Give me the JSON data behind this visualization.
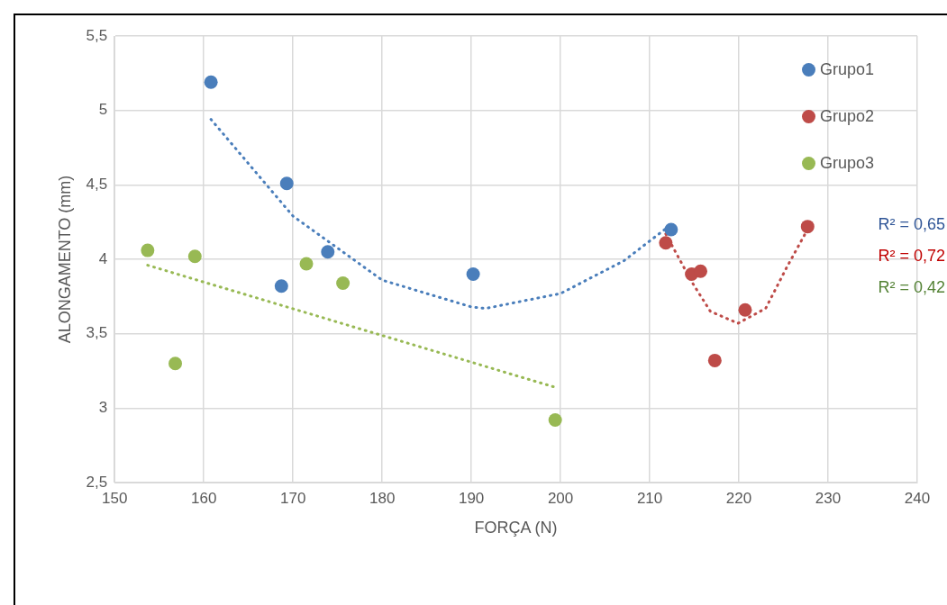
{
  "chart_data": {
    "type": "scatter",
    "xlabel": "FORÇA (N)",
    "ylabel": "ALONGAMENTO (mm)",
    "xlim": [
      150,
      240
    ],
    "xticks": [
      150,
      160,
      170,
      180,
      190,
      200,
      210,
      220,
      230,
      240
    ],
    "ylim": [
      2.5,
      5.5
    ],
    "yticks": [
      {
        "value": 2.5,
        "label": "2,5"
      },
      3,
      {
        "value": 3.5,
        "label": "3,5"
      },
      4,
      {
        "value": 4.5,
        "label": "4,5"
      },
      5,
      {
        "value": 5.5,
        "label": "5,5"
      }
    ],
    "grid": true,
    "legend": "top right",
    "marker": "circle",
    "series": [
      {
        "name": "Grupo1",
        "color": "#4a7ebb",
        "x": [
          160.8,
          169.3,
          168.7,
          173.9,
          190.2,
          212.4
        ],
        "values": [
          5.19,
          4.51,
          3.82,
          4.05,
          3.9,
          4.2
        ]
      },
      {
        "name": "Grupo2",
        "color": "#be4b48",
        "x": [
          211.8,
          214.7,
          215.7,
          217.3,
          220.7,
          227.7
        ],
        "values": [
          4.11,
          3.9,
          3.92,
          3.32,
          3.66,
          4.22
        ]
      },
      {
        "name": "Grupo3",
        "color": "#98b954",
        "x": [
          153.7,
          156.8,
          159.0,
          171.5,
          175.6,
          199.4
        ],
        "values": [
          4.06,
          3.3,
          4.02,
          3.97,
          3.84,
          2.92
        ]
      },
      {
        "type": "line",
        "color": "#4a7ebb",
        "marker": "none",
        "line_style": "dotted",
        "x": [
          160.8,
          170,
          180,
          190,
          191.6,
          200,
          207.1,
          211.9
        ],
        "values": [
          4.94,
          4.29,
          3.86,
          3.68,
          3.67,
          3.77,
          3.99,
          4.21
        ]
      },
      {
        "type": "line",
        "color": "#be4b48",
        "marker": "none",
        "line_style": "dotted",
        "x": [
          211.8,
          214.7,
          216.8,
          219.9,
          223,
          225.4,
          227.6
        ],
        "values": [
          4.17,
          3.85,
          3.65,
          3.57,
          3.67,
          3.95,
          4.19
        ]
      },
      {
        "type": "line",
        "color": "#98b954",
        "marker": "none",
        "line_style": "dotted",
        "x": [
          153.7,
          199.4
        ],
        "values": [
          3.96,
          3.14
        ]
      }
    ],
    "annotations": [
      "R² = 0,65",
      "R² = 0,72",
      "R² = 0,42"
    ]
  }
}
